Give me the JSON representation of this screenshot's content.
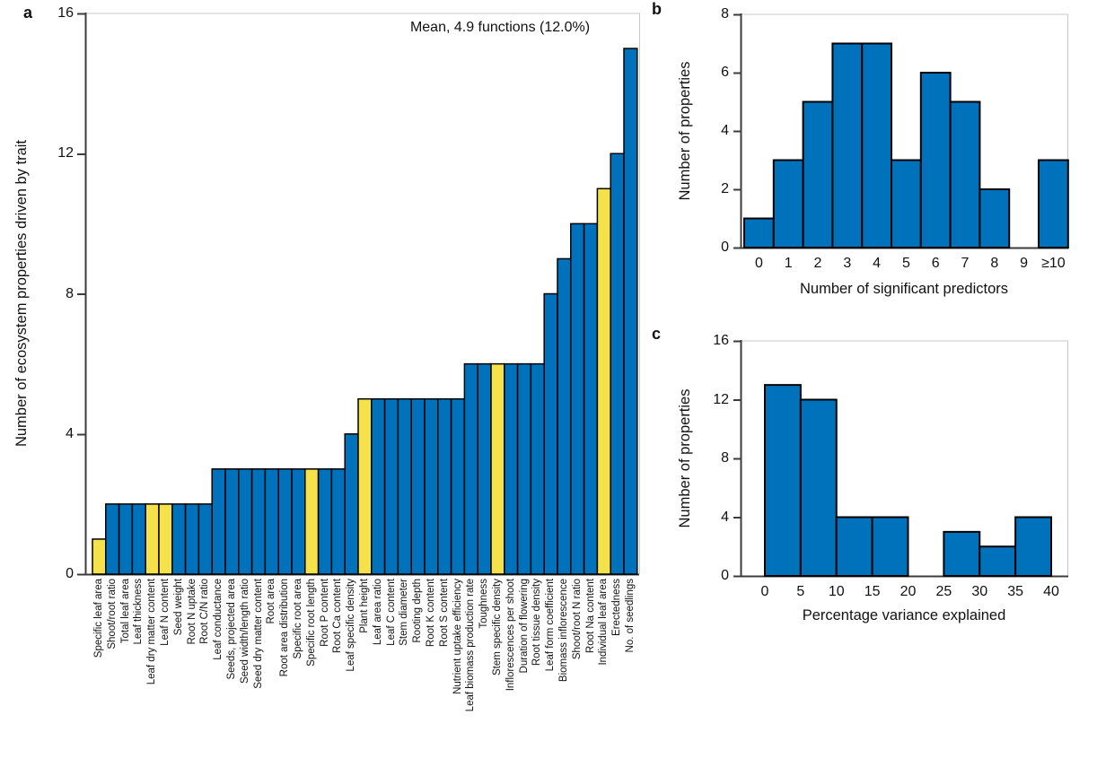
{
  "colors": {
    "bar_blue": "#0072BC",
    "bar_yellow": "#F5E24A",
    "bar_outline": "#000000",
    "axis_line": "#3C3C3C",
    "frame_line": "#C8C8C8",
    "text": "#111111"
  },
  "chart_data": [
    {
      "id": "a",
      "type": "bar",
      "panel_letter": "a",
      "annotation": "Mean, 4.9 functions (12.0%)",
      "ylabel": "Number of ecosystem properties driven by trait",
      "xlabel": "",
      "ylim": [
        0,
        16
      ],
      "yticks": [
        0,
        4,
        8,
        12,
        16
      ],
      "grid": false,
      "legend": "none",
      "categories": [
        "Specific leaf area",
        "Shoot/root ratio",
        "Total leaf area",
        "Leaf thickness",
        "Leaf dry matter content",
        "Leaf N content",
        "Seed weight",
        "Root N uptake",
        "Root C/N ratio",
        "Leaf conductance",
        "Seeds, projected area",
        "Seed width/length ratio",
        "Seed dry matter content",
        "Root area",
        "Root area distribution",
        "Specific root area",
        "Specific root length",
        "Root P content",
        "Root Ca content",
        "Leaf specific density",
        "Plant height",
        "Leaf area ratio",
        "Leaf C content",
        "Stem diameter",
        "Rooting depth",
        "Root K content",
        "Root S content",
        "Nutrient uptake efficiency",
        "Leaf biomass production rate",
        "Toughness",
        "Stem specific density",
        "Inflorescences per shoot",
        "Duration of flowering",
        "Root tissue density",
        "Leaf form coefficient",
        "Biomass inflorescence",
        "Shoot/root N ratio",
        "Root Na content",
        "Individual leaf area",
        "Erectedness",
        "No. of seedlings"
      ],
      "values": [
        1,
        2,
        2,
        2,
        2,
        2,
        2,
        2,
        2,
        3,
        3,
        3,
        3,
        3,
        3,
        3,
        3,
        3,
        3,
        4,
        5,
        5,
        5,
        5,
        5,
        5,
        5,
        5,
        6,
        6,
        6,
        6,
        6,
        6,
        8,
        9,
        10,
        10,
        11,
        12,
        15
      ],
      "highlight_indices": [
        0,
        4,
        5,
        16,
        20,
        30,
        38
      ]
    },
    {
      "id": "b",
      "type": "bar",
      "panel_letter": "b",
      "ylabel": "Number of properties",
      "xlabel": "Number of significant predictors",
      "ylim": [
        0,
        8
      ],
      "yticks": [
        0,
        2,
        4,
        6,
        8
      ],
      "grid": false,
      "legend": "none",
      "categories": [
        "0",
        "1",
        "2",
        "3",
        "4",
        "5",
        "6",
        "7",
        "8",
        "9",
        "≥10"
      ],
      "values": [
        1,
        3,
        5,
        7,
        7,
        3,
        6,
        5,
        2,
        0,
        3
      ]
    },
    {
      "id": "c",
      "type": "histogram",
      "panel_letter": "c",
      "ylabel": "Number of properties",
      "xlabel": "Percentage variance explained",
      "ylim": [
        0,
        16
      ],
      "yticks": [
        0,
        4,
        8,
        12,
        16
      ],
      "grid": false,
      "legend": "none",
      "bin_edges": [
        0,
        5,
        10,
        15,
        20,
        25,
        30,
        35,
        40
      ],
      "xtick_labels": [
        "0",
        "5",
        "10",
        "15",
        "20",
        "25",
        "30",
        "35",
        "40"
      ],
      "values": [
        13,
        12,
        4,
        4,
        0,
        3,
        2,
        4
      ]
    }
  ]
}
